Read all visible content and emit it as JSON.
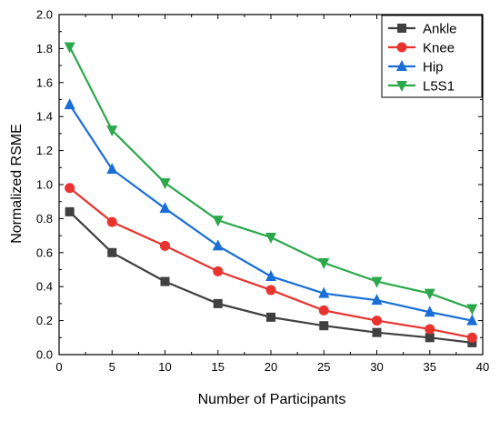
{
  "chart_data": {
    "type": "line",
    "title": "",
    "xlabel": "Number of Participants",
    "ylabel": "Normalized RSME",
    "xlim": [
      0,
      40
    ],
    "ylim": [
      0.0,
      2.0
    ],
    "x_ticks": [
      "0",
      "5",
      "10",
      "15",
      "20",
      "25",
      "30",
      "35",
      "40"
    ],
    "y_ticks": [
      "0.0",
      "0.2",
      "0.4",
      "0.6",
      "0.8",
      "1.0",
      "1.2",
      "1.4",
      "1.6",
      "1.8",
      "2.0"
    ],
    "grid": false,
    "legend_position": "top-right",
    "x": [
      1,
      5,
      10,
      15,
      20,
      25,
      30,
      35,
      39
    ],
    "series": [
      {
        "name": "Ankle",
        "color": "#404040",
        "marker": "square",
        "values": [
          0.84,
          0.6,
          0.43,
          0.3,
          0.22,
          0.17,
          0.13,
          0.1,
          0.07
        ]
      },
      {
        "name": "Knee",
        "color": "#e8332e",
        "marker": "circle",
        "values": [
          0.98,
          0.78,
          0.64,
          0.49,
          0.38,
          0.26,
          0.2,
          0.15,
          0.1
        ]
      },
      {
        "name": "Hip",
        "color": "#1a6fd6",
        "marker": "triangle-up",
        "values": [
          1.47,
          1.09,
          0.86,
          0.64,
          0.46,
          0.36,
          0.32,
          0.25,
          0.2
        ]
      },
      {
        "name": "L5S1",
        "color": "#2aa84a",
        "marker": "triangle-down",
        "values": [
          1.81,
          1.32,
          1.01,
          0.79,
          0.69,
          0.54,
          0.43,
          0.36,
          0.27
        ]
      }
    ]
  }
}
